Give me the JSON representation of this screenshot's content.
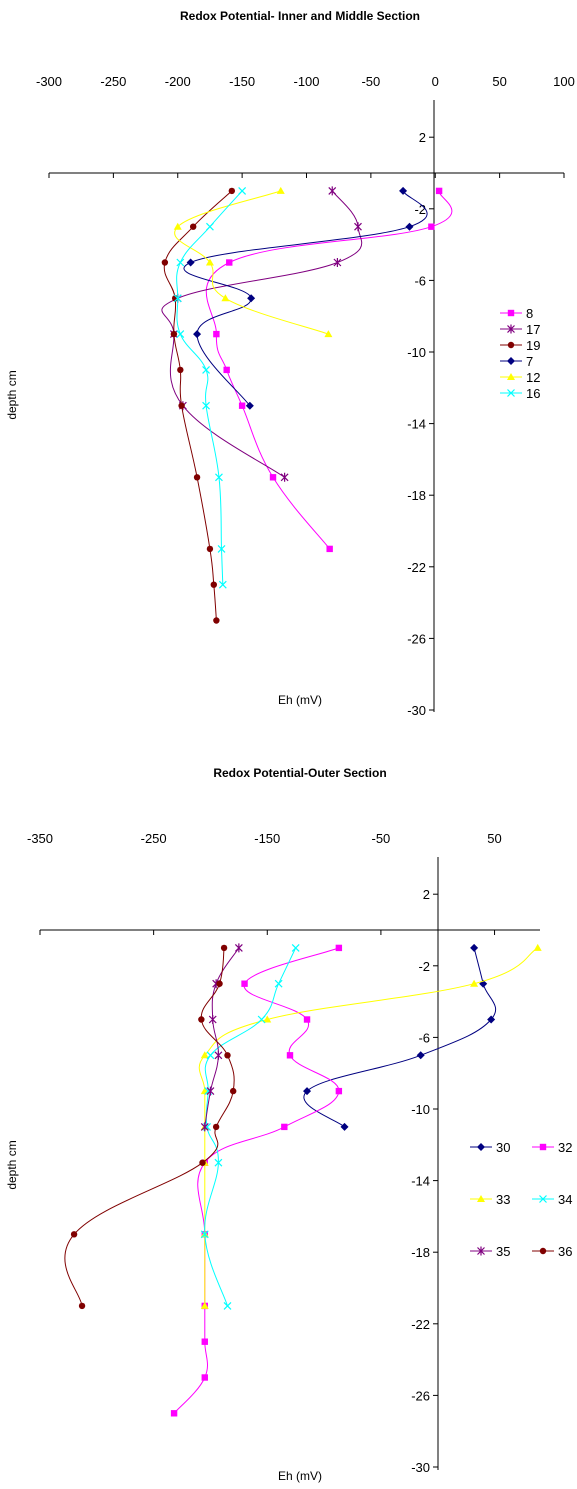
{
  "chart_data": [
    {
      "type": "line",
      "title": "Redox Potential- Inner and Middle Section",
      "xlabel": "Eh (mV)",
      "ylabel": "depth cm",
      "xlim": [
        -300,
        100
      ],
      "ylim": [
        -30,
        4
      ],
      "x_ticks": [
        -300,
        -250,
        -200,
        -150,
        -100,
        -50,
        0,
        50,
        100
      ],
      "y_ticks": [
        2,
        -2,
        -6,
        -10,
        -14,
        -18,
        -22,
        -26,
        -30
      ],
      "grid": false,
      "legend_position": "right",
      "series": [
        {
          "name": "8",
          "color": "#ff00ff",
          "marker": "square",
          "points": [
            [
              3,
              -1
            ],
            [
              -3,
              -3
            ],
            [
              -160,
              -5
            ],
            [
              -170,
              -9
            ],
            [
              -162,
              -11
            ],
            [
              -150,
              -13
            ],
            [
              -126,
              -17
            ],
            [
              -82,
              -21
            ]
          ]
        },
        {
          "name": "17",
          "color": "#800080",
          "marker": "star",
          "points": [
            [
              -80,
              -1
            ],
            [
              -60,
              -3
            ],
            [
              -76,
              -5
            ],
            [
              -200,
              -7
            ],
            [
              -203,
              -9
            ],
            [
              -196,
              -13
            ],
            [
              -117,
              -17
            ]
          ]
        },
        {
          "name": "19",
          "color": "#800000",
          "marker": "circle",
          "points": [
            [
              -158,
              -1
            ],
            [
              -188,
              -3
            ],
            [
              -210,
              -5
            ],
            [
              -202,
              -7
            ],
            [
              -203,
              -9
            ],
            [
              -198,
              -11
            ],
            [
              -197,
              -13
            ],
            [
              -185,
              -17
            ],
            [
              -175,
              -21
            ],
            [
              -172,
              -23
            ],
            [
              -170,
              -25
            ]
          ]
        },
        {
          "name": "7",
          "color": "#000080",
          "marker": "diamond",
          "points": [
            [
              -25,
              -1
            ],
            [
              -20,
              -3
            ],
            [
              -190,
              -5
            ],
            [
              -143,
              -7
            ],
            [
              -185,
              -9
            ],
            [
              -144,
              -13
            ]
          ]
        },
        {
          "name": "12",
          "color": "#ffff00",
          "marker": "triangle",
          "points": [
            [
              -120,
              -1
            ],
            [
              -200,
              -3
            ],
            [
              -175,
              -5
            ],
            [
              -163,
              -7
            ],
            [
              -83,
              -9
            ]
          ]
        },
        {
          "name": "16",
          "color": "#00ffff",
          "marker": "x",
          "points": [
            [
              -150,
              -1
            ],
            [
              -175,
              -3
            ],
            [
              -198,
              -5
            ],
            [
              -200,
              -7
            ],
            [
              -198,
              -9
            ],
            [
              -178,
              -11
            ],
            [
              -178,
              -13
            ],
            [
              -168,
              -17
            ],
            [
              -166,
              -21
            ],
            [
              -165,
              -23
            ]
          ]
        }
      ]
    },
    {
      "type": "line",
      "title": "Redox Potential-Outer Section",
      "xlabel": "Eh (mV)",
      "ylabel": "depth cm",
      "xlim": [
        -350,
        90
      ],
      "ylim": [
        -30,
        4
      ],
      "x_ticks": [
        -350,
        -250,
        -150,
        -50,
        50
      ],
      "y_ticks": [
        2,
        -2,
        -6,
        -10,
        -14,
        -18,
        -22,
        -26,
        -30
      ],
      "grid": false,
      "legend_position": "right",
      "series": [
        {
          "name": "30",
          "color": "#000080",
          "marker": "diamond",
          "points": [
            [
              32,
              -1
            ],
            [
              40,
              -3
            ],
            [
              47,
              -5
            ],
            [
              -15,
              -7
            ],
            [
              -115,
              -9
            ],
            [
              -82,
              -11
            ]
          ]
        },
        {
          "name": "32",
          "color": "#ff00ff",
          "marker": "square",
          "points": [
            [
              -87,
              -1
            ],
            [
              -170,
              -3
            ],
            [
              -115,
              -5
            ],
            [
              -130,
              -7
            ],
            [
              -87,
              -9
            ],
            [
              -135,
              -11
            ],
            [
              -205,
              -13
            ],
            [
              -205,
              -17
            ],
            [
              -205,
              -21
            ],
            [
              -205,
              -23
            ],
            [
              -205,
              -25
            ],
            [
              -232,
              -27
            ]
          ]
        },
        {
          "name": "33",
          "color": "#ffff00",
          "marker": "triangle",
          "points": [
            [
              88,
              -1
            ],
            [
              32,
              -3
            ],
            [
              -150,
              -5
            ],
            [
              -205,
              -7
            ],
            [
              -205,
              -9
            ],
            [
              -205,
              -11
            ],
            [
              -205,
              -13
            ],
            [
              -205,
              -17
            ],
            [
              -205,
              -21
            ]
          ]
        },
        {
          "name": "34",
          "color": "#00ffff",
          "marker": "x",
          "points": [
            [
              -125,
              -1
            ],
            [
              -140,
              -3
            ],
            [
              -155,
              -5
            ],
            [
              -200,
              -7
            ],
            [
              -202,
              -9
            ],
            [
              -203,
              -11
            ],
            [
              -193,
              -13
            ],
            [
              -205,
              -17
            ],
            [
              -185,
              -21
            ]
          ]
        },
        {
          "name": "35",
          "color": "#800080",
          "marker": "star",
          "points": [
            [
              -175,
              -1
            ],
            [
              -195,
              -3
            ],
            [
              -198,
              -5
            ],
            [
              -193,
              -7
            ],
            [
              -200,
              -9
            ],
            [
              -205,
              -11
            ]
          ]
        },
        {
          "name": "36",
          "color": "#800000",
          "marker": "circle",
          "points": [
            [
              -188,
              -1
            ],
            [
              -192,
              -3
            ],
            [
              -208,
              -5
            ],
            [
              -185,
              -7
            ],
            [
              -180,
              -9
            ],
            [
              -195,
              -11
            ],
            [
              -207,
              -13
            ],
            [
              -320,
              -17
            ],
            [
              -313,
              -21
            ]
          ]
        }
      ]
    }
  ]
}
